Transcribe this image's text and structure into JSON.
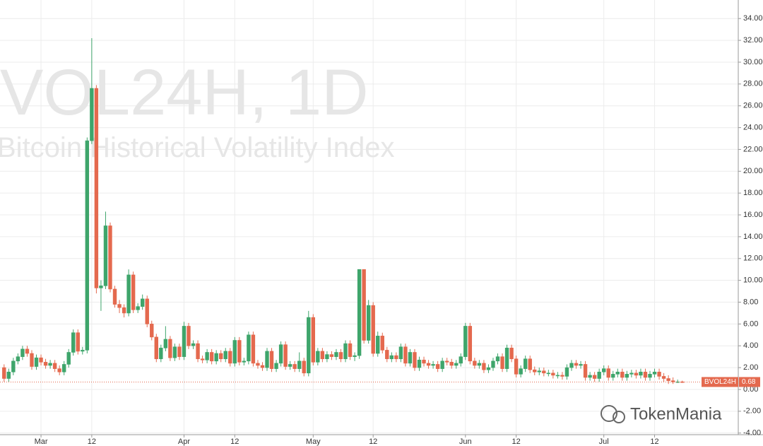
{
  "chart_data": {
    "type": "candlestick",
    "title": "VOL24H, 1D",
    "subtitle": "Bitcoin Historical Volatility Index",
    "logo": "TokenMania",
    "last_label": "BVOL24H",
    "up_color": "#3ea56b",
    "down_color": "#e4694e",
    "grid": true,
    "ylim": [
      -4.15,
      35.7
    ],
    "yticks": [
      {
        "value": -4,
        "label": "-4.00"
      },
      {
        "value": -2,
        "label": "-2.00"
      },
      {
        "value": 0,
        "label": "0.00"
      },
      {
        "value": 2,
        "label": "2.00"
      },
      {
        "value": 4,
        "label": "4.00"
      },
      {
        "value": 6,
        "label": "6.00"
      },
      {
        "value": 8,
        "label": "8.00"
      },
      {
        "value": 10,
        "label": "10.00"
      },
      {
        "value": 12,
        "label": "12.00"
      },
      {
        "value": 14,
        "label": "14.00"
      },
      {
        "value": 16,
        "label": "16.00"
      },
      {
        "value": 18,
        "label": "18.00"
      },
      {
        "value": 20,
        "label": "20.00"
      },
      {
        "value": 22,
        "label": "22.00"
      },
      {
        "value": 24,
        "label": "24.00"
      },
      {
        "value": 26,
        "label": "26.00"
      },
      {
        "value": 28,
        "label": "28.00"
      },
      {
        "value": 30,
        "label": "30.00"
      },
      {
        "value": 32,
        "label": "32.00"
      },
      {
        "value": 34,
        "label": "34.00"
      }
    ],
    "categories": [
      null,
      null,
      null,
      null,
      null,
      null,
      null,
      null,
      "Mar",
      null,
      null,
      null,
      null,
      null,
      null,
      null,
      null,
      null,
      null,
      "12",
      null,
      null,
      null,
      null,
      null,
      null,
      null,
      null,
      null,
      null,
      null,
      null,
      null,
      null,
      null,
      null,
      null,
      null,
      null,
      "Apr",
      null,
      null,
      null,
      null,
      null,
      null,
      null,
      null,
      null,
      null,
      "12",
      null,
      null,
      null,
      null,
      null,
      null,
      null,
      null,
      null,
      null,
      null,
      null,
      null,
      null,
      null,
      null,
      "May",
      null,
      null,
      null,
      null,
      null,
      null,
      null,
      null,
      null,
      null,
      null,
      null,
      "12",
      null,
      null,
      null,
      null,
      null,
      null,
      null,
      null,
      null,
      null,
      null,
      null,
      null,
      null,
      null,
      null,
      null,
      null,
      null,
      "Jun",
      null,
      null,
      null,
      null,
      null,
      null,
      null,
      null,
      null,
      null,
      "12",
      null,
      null,
      null,
      null,
      null,
      null,
      null,
      null,
      null,
      null,
      null,
      null,
      null,
      null,
      null,
      null,
      null,
      null,
      "Jul",
      null,
      null,
      null,
      null,
      null,
      null,
      null,
      null,
      null,
      null,
      "12",
      null,
      null,
      null,
      null,
      null,
      null
    ],
    "open": [
      2.0,
      1.0,
      1.6,
      2.6,
      3.0,
      3.7,
      3.3,
      2.1,
      2.9,
      2.5,
      2.2,
      2.4,
      1.9,
      1.6,
      2.3,
      3.4,
      5.2,
      3.5,
      3.6,
      22.8,
      27.6,
      9.3,
      9.5,
      15.0,
      9.2,
      7.8,
      7.5,
      7.0,
      10.5,
      7.3,
      7.6,
      8.3,
      6.0,
      4.8,
      2.8,
      3.8,
      4.6,
      2.9,
      3.9,
      3.0,
      5.8,
      4.0,
      4.2,
      2.8,
      2.7,
      3.4,
      2.6,
      3.3,
      2.8,
      3.5,
      2.4,
      4.5,
      2.5,
      2.6,
      5.0,
      2.4,
      2.2,
      2.0,
      3.5,
      1.9,
      2.4,
      4.1,
      2.1,
      2.3,
      1.9,
      2.6,
      1.5,
      6.6,
      2.5,
      3.5,
      2.8,
      3.2,
      3.0,
      3.4,
      2.8,
      4.2,
      3.0,
      3.1,
      11.0,
      4.5,
      7.7,
      3.3,
      4.9,
      3.6,
      2.8,
      3.1,
      2.8,
      3.9,
      2.4,
      3.4,
      2.0,
      2.7,
      2.4,
      2.2,
      2.3,
      1.9,
      2.6,
      2.5,
      2.2,
      2.4,
      3.0,
      5.8,
      2.6,
      2.2,
      2.4,
      1.8,
      2.0,
      2.6,
      3.0,
      1.9,
      3.8,
      2.8,
      1.4,
      1.9,
      2.8,
      1.8,
      1.6,
      1.7,
      1.5,
      1.5,
      1.3,
      1.3,
      1.2,
      2.0,
      2.4,
      2.2,
      2.3,
      1.1,
      1.3,
      1.0,
      1.6,
      1.9,
      1.1,
      1.4,
      1.6,
      1.1,
      1.4,
      1.5,
      1.3,
      1.6,
      1.1,
      1.4,
      1.6,
      1.2,
      1.0,
      0.8,
      0.7,
      0.7
    ],
    "high": [
      2.3,
      1.9,
      2.9,
      3.3,
      4.0,
      4.0,
      3.6,
      3.2,
      3.2,
      2.8,
      2.7,
      2.7,
      2.2,
      2.6,
      3.7,
      5.5,
      5.5,
      3.9,
      23.1,
      32.2,
      27.9,
      10.0,
      16.3,
      15.3,
      9.5,
      8.2,
      7.8,
      11.0,
      10.8,
      7.9,
      8.7,
      8.6,
      6.3,
      5.1,
      4.1,
      5.8,
      4.9,
      4.2,
      4.2,
      6.2,
      6.1,
      4.5,
      4.5,
      3.1,
      3.7,
      3.7,
      3.6,
      3.6,
      3.8,
      3.8,
      4.8,
      4.8,
      2.9,
      5.3,
      5.3,
      2.7,
      2.5,
      3.8,
      3.8,
      2.7,
      4.4,
      4.4,
      2.6,
      2.6,
      3.4,
      2.9,
      7.2,
      6.9,
      3.8,
      3.8,
      3.5,
      3.5,
      3.7,
      3.7,
      4.5,
      4.5,
      3.4,
      11.0,
      11.0,
      8.2,
      8.0,
      5.3,
      5.2,
      3.9,
      3.4,
      3.4,
      4.2,
      4.2,
      3.7,
      3.7,
      3.0,
      3.0,
      2.7,
      2.6,
      2.6,
      2.9,
      2.9,
      2.8,
      2.7,
      3.3,
      6.1,
      6.1,
      2.9,
      2.7,
      2.7,
      2.3,
      2.9,
      3.3,
      3.3,
      4.1,
      4.1,
      3.1,
      2.2,
      3.1,
      3.1,
      2.1,
      2.0,
      2.0,
      1.8,
      1.8,
      1.6,
      1.6,
      2.3,
      2.7,
      2.7,
      2.6,
      2.6,
      1.6,
      1.6,
      1.9,
      2.2,
      2.2,
      1.7,
      1.9,
      1.9,
      1.7,
      1.8,
      1.8,
      1.9,
      1.9,
      1.7,
      1.9,
      1.9,
      1.5,
      1.3,
      1.1,
      0.9,
      0.8
    ],
    "low": [
      0.7,
      0.7,
      1.3,
      2.3,
      2.7,
      3.0,
      1.8,
      1.8,
      2.2,
      1.9,
      1.9,
      1.6,
      1.3,
      1.3,
      2.0,
      3.1,
      3.2,
      3.2,
      3.3,
      22.5,
      8.8,
      7.2,
      9.2,
      8.9,
      7.5,
      7.0,
      6.6,
      6.7,
      7.0,
      7.0,
      7.3,
      5.7,
      4.5,
      2.5,
      2.5,
      3.5,
      2.6,
      2.6,
      2.7,
      2.7,
      3.7,
      3.7,
      2.5,
      2.4,
      2.4,
      2.3,
      2.3,
      2.5,
      2.5,
      2.1,
      2.1,
      2.2,
      2.2,
      2.3,
      2.1,
      1.9,
      1.7,
      1.7,
      1.6,
      1.6,
      2.1,
      1.8,
      1.8,
      1.6,
      1.6,
      1.2,
      1.2,
      2.2,
      2.2,
      2.5,
      2.5,
      2.7,
      2.7,
      2.5,
      2.5,
      2.7,
      2.6,
      2.8,
      4.2,
      4.2,
      3.0,
      3.0,
      3.3,
      2.5,
      2.5,
      2.5,
      2.5,
      2.1,
      2.1,
      1.7,
      1.7,
      2.1,
      1.9,
      1.9,
      1.6,
      1.6,
      2.2,
      1.9,
      1.9,
      2.1,
      2.7,
      2.3,
      1.9,
      1.9,
      1.5,
      1.5,
      1.7,
      2.3,
      1.6,
      1.6,
      2.5,
      1.1,
      1.1,
      1.6,
      1.5,
      1.3,
      1.3,
      1.2,
      1.2,
      1.0,
      1.0,
      0.9,
      0.9,
      1.7,
      1.9,
      1.9,
      0.8,
      0.8,
      0.7,
      0.7,
      1.3,
      0.8,
      0.8,
      1.1,
      0.8,
      0.8,
      1.1,
      1.0,
      1.0,
      0.8,
      0.8,
      1.1,
      0.9,
      0.7,
      0.5,
      0.5,
      0.6,
      0.6
    ],
    "close": [
      1.0,
      1.6,
      2.6,
      3.0,
      3.7,
      3.3,
      2.1,
      2.9,
      2.5,
      2.2,
      2.4,
      1.9,
      1.6,
      2.3,
      3.4,
      5.2,
      3.5,
      3.6,
      22.8,
      27.6,
      9.3,
      9.5,
      15.0,
      9.2,
      7.8,
      7.5,
      7.0,
      10.5,
      7.3,
      7.6,
      8.3,
      6.0,
      4.8,
      2.8,
      3.8,
      4.6,
      2.9,
      3.9,
      3.0,
      5.8,
      4.0,
      4.2,
      2.8,
      2.7,
      3.4,
      2.6,
      3.3,
      2.8,
      3.5,
      2.4,
      4.5,
      2.5,
      2.6,
      5.0,
      2.4,
      2.2,
      2.0,
      3.5,
      1.9,
      2.4,
      4.1,
      2.1,
      2.3,
      1.9,
      2.6,
      1.5,
      6.6,
      2.5,
      3.5,
      2.8,
      3.2,
      3.0,
      3.4,
      2.8,
      4.2,
      3.0,
      3.1,
      11.0,
      4.5,
      7.7,
      3.3,
      4.9,
      3.6,
      2.8,
      3.1,
      2.8,
      3.9,
      2.4,
      3.4,
      2.0,
      2.7,
      2.4,
      2.2,
      2.3,
      1.9,
      2.6,
      2.5,
      2.2,
      2.4,
      3.0,
      5.8,
      2.6,
      2.2,
      2.4,
      1.8,
      2.0,
      2.6,
      3.0,
      1.9,
      3.8,
      2.8,
      1.4,
      1.9,
      2.8,
      1.8,
      1.6,
      1.7,
      1.5,
      1.5,
      1.3,
      1.3,
      1.2,
      2.0,
      2.4,
      2.2,
      2.3,
      1.1,
      1.3,
      1.0,
      1.6,
      1.9,
      1.1,
      1.4,
      1.6,
      1.1,
      1.4,
      1.5,
      1.3,
      1.6,
      1.1,
      1.4,
      1.6,
      1.2,
      1.0,
      0.8,
      0.7,
      0.7,
      0.68
    ]
  }
}
